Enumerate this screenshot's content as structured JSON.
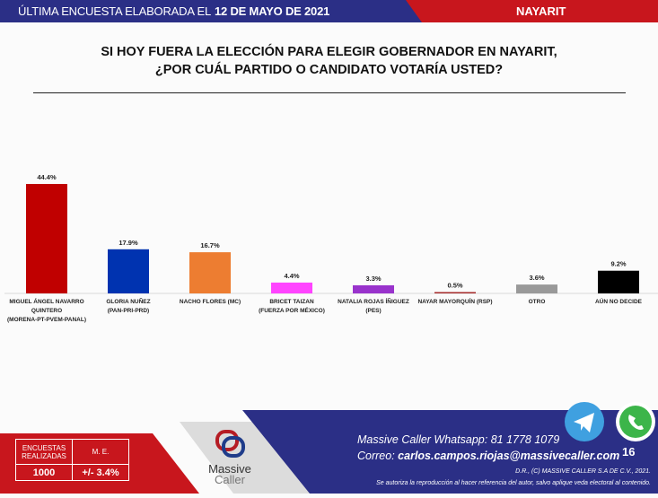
{
  "header": {
    "prefix": "ÚLTIMA ENCUESTA ELABORADA EL",
    "date": "12 DE MAYO DE 2021",
    "state": "NAYARIT"
  },
  "question": {
    "line1": "SI HOY FUERA LA ELECCIÓN PARA ELEGIR GOBERNADOR EN NAYARIT,",
    "line2": "¿POR CUÁL PARTIDO O CANDIDATO VOTARÍA USTED?"
  },
  "chart_data": {
    "type": "bar",
    "categories": [
      [
        "MIGUEL ÁNGEL NAVARRO",
        "QUINTERO",
        "(MORENA-PT-PVEM-PANAL)"
      ],
      [
        "GLORIA NUÑEZ",
        "(PAN-PRI-PRD)"
      ],
      [
        "NACHO FLORES (MC)"
      ],
      [
        "BRICET TAIZAN",
        "(FUERZA POR MÉXICO)"
      ],
      [
        "NATALIA ROJAS ÍÑIGUEZ",
        "(PES)"
      ],
      [
        "NAYAR MAYORQUÍN (RSP)"
      ],
      [
        "OTRO"
      ],
      [
        "AÚN NO DECIDE"
      ]
    ],
    "values": [
      44.4,
      17.9,
      16.7,
      4.4,
      3.3,
      0.5,
      3.6,
      9.2
    ],
    "labels": [
      "44.4%",
      "17.9%",
      "16.7%",
      "4.4%",
      "3.3%",
      "0.5%",
      "3.6%",
      "9.2%"
    ],
    "colors": [
      "#c00000",
      "#0033b0",
      "#ed7d31",
      "#ff44ff",
      "#9933cc",
      "#a52a2a",
      "#999999",
      "#000000"
    ],
    "ylim": [
      0,
      50
    ],
    "grid": false
  },
  "footer": {
    "table": {
      "h1": "ENCUESTAS REALIZADAS",
      "h2": "M. E.",
      "v1": "1000",
      "v2": "+/- 3.4%"
    },
    "logo": {
      "line1": "Massive",
      "line2": "Caller"
    },
    "whatsapp_label": "Massive Caller Whatsapp:",
    "whatsapp": "81 1778 1079",
    "email_label": "Correo:",
    "email": "carlos.campos.riojas@massivecaller.com",
    "page": "16",
    "copyright": "D.R., (C) MASSIVE CALLER S.A DE C.V., 2021.",
    "notice": "Se autoriza la reproducción al hacer referencia del autor, salvo aplique veda electoral al contenido.",
    "colors": {
      "blue": "#2b2f86",
      "red": "#c8161d"
    }
  }
}
